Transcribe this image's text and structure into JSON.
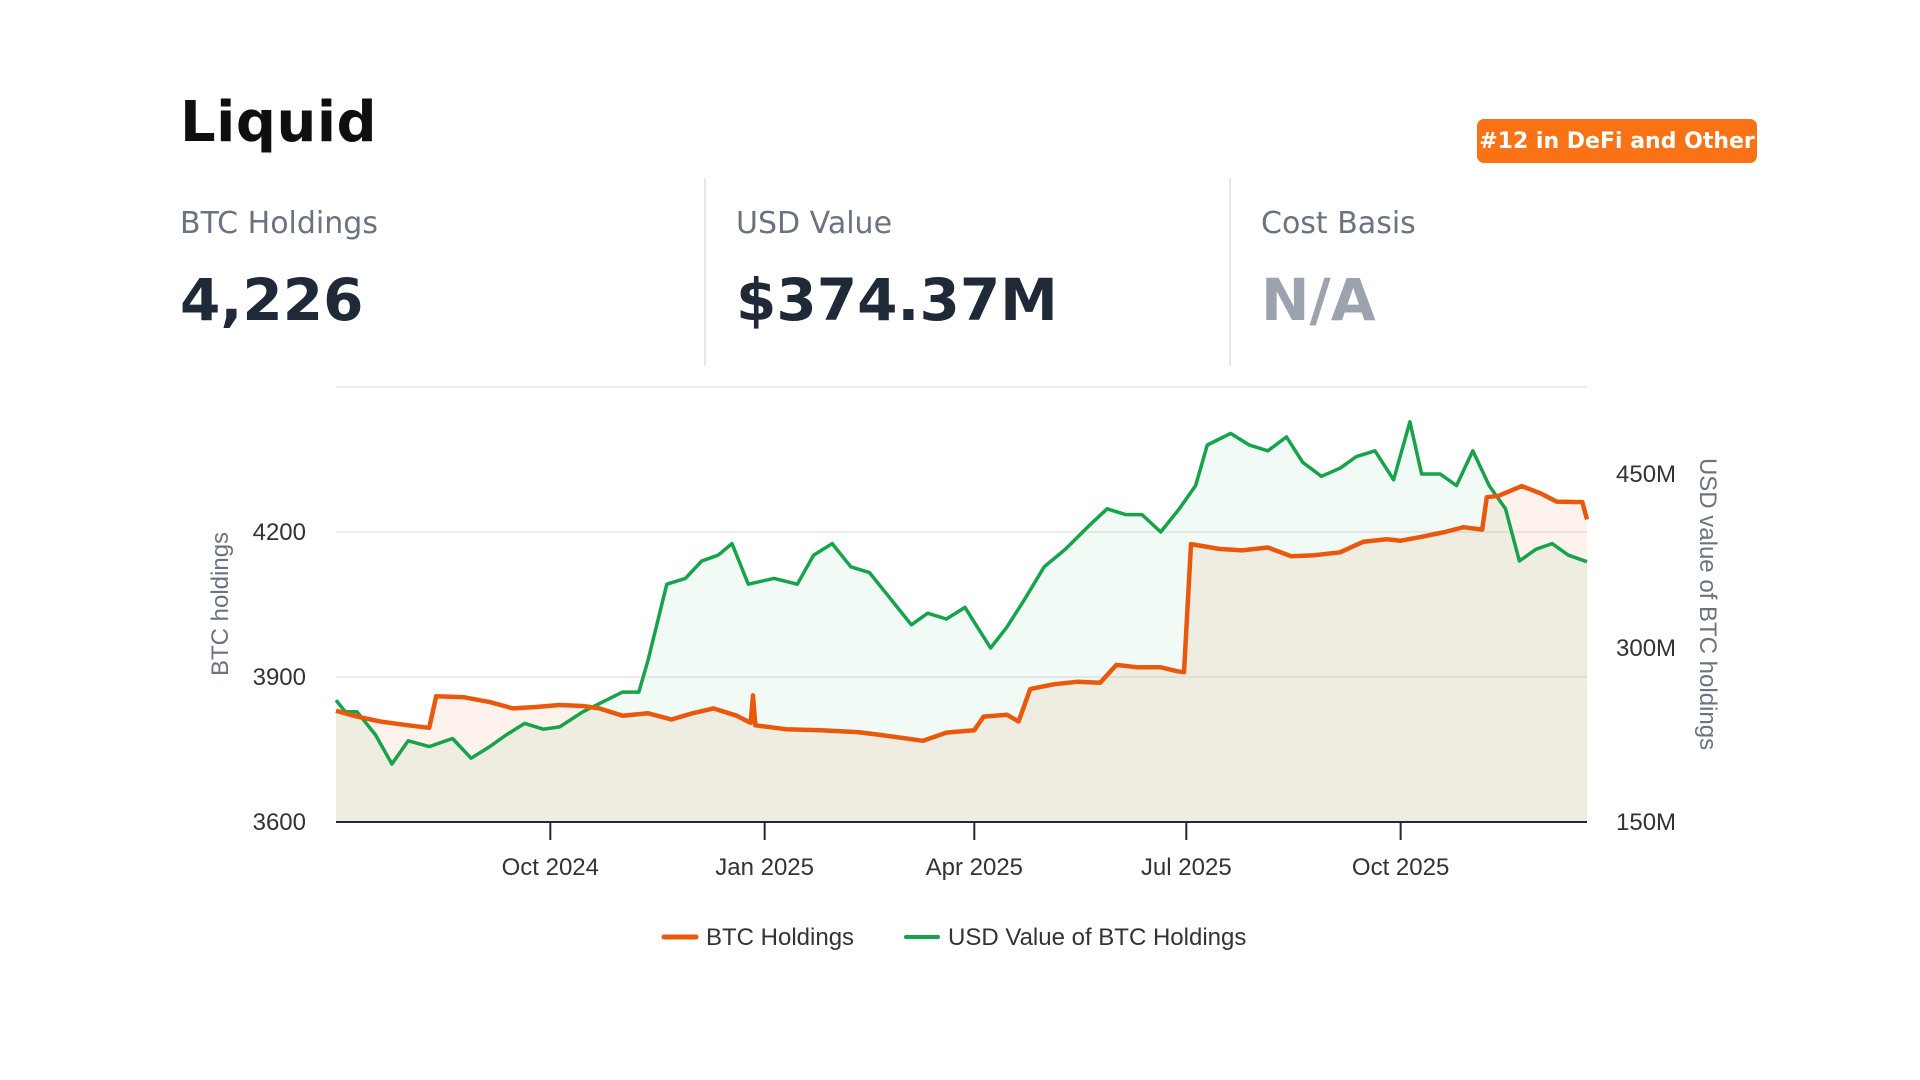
{
  "header": {
    "title": "Liquid",
    "badge": "#12 in DeFi and Other"
  },
  "stats": [
    {
      "label": "BTC Holdings",
      "value": "4,226"
    },
    {
      "label": "USD Value",
      "value": "$374.37M"
    },
    {
      "label": "Cost Basis",
      "value": "N/A"
    }
  ],
  "colors": {
    "btc": "#ea580c",
    "usd": "#16a34a",
    "badge": "#f97316"
  },
  "chart_data": {
    "type": "line",
    "x_range": [
      "2024-07-01",
      "2025-12-20"
    ],
    "x_ticks": [
      "Oct 2024",
      "Jan 2025",
      "Apr 2025",
      "Jul 2025",
      "Oct 2025"
    ],
    "x_tick_dates": [
      "2024-10-01",
      "2025-01-01",
      "2025-04-01",
      "2025-07-01",
      "2025-10-01"
    ],
    "ylabel_left": "BTC holdings",
    "ylabel_right": "USD value of BTC holdings",
    "ylim_left": [
      3600,
      4500
    ],
    "ylim_right": [
      150000000,
      525000000
    ],
    "yticks_left": [
      "3600",
      "3900",
      "4200"
    ],
    "yticks_left_values": [
      3600,
      3900,
      4200
    ],
    "yticks_right": [
      "150M",
      "300M",
      "450M"
    ],
    "yticks_right_values": [
      150000000,
      300000000,
      450000000
    ],
    "grid": true,
    "legend_position": "bottom-center",
    "series": [
      {
        "name": "BTC Holdings",
        "axis": "left",
        "points": [
          [
            "2024-07-01",
            3830
          ],
          [
            "2024-07-10",
            3818
          ],
          [
            "2024-07-20",
            3808
          ],
          [
            "2024-08-01",
            3800
          ],
          [
            "2024-08-10",
            3795
          ],
          [
            "2024-08-13",
            3860
          ],
          [
            "2024-08-25",
            3858
          ],
          [
            "2024-09-05",
            3848
          ],
          [
            "2024-09-15",
            3835
          ],
          [
            "2024-09-25",
            3838
          ],
          [
            "2024-10-05",
            3842
          ],
          [
            "2024-10-15",
            3840
          ],
          [
            "2024-10-22",
            3835
          ],
          [
            "2024-11-01",
            3820
          ],
          [
            "2024-11-12",
            3825
          ],
          [
            "2024-11-22",
            3812
          ],
          [
            "2024-12-01",
            3825
          ],
          [
            "2024-12-10",
            3835
          ],
          [
            "2024-12-20",
            3820
          ],
          [
            "2024-12-26",
            3805
          ],
          [
            "2024-12-27",
            3862
          ],
          [
            "2024-12-28",
            3800
          ],
          [
            "2025-01-10",
            3792
          ],
          [
            "2025-01-25",
            3790
          ],
          [
            "2025-02-10",
            3786
          ],
          [
            "2025-02-20",
            3780
          ],
          [
            "2025-03-01",
            3774
          ],
          [
            "2025-03-10",
            3768
          ],
          [
            "2025-03-20",
            3785
          ],
          [
            "2025-04-01",
            3790
          ],
          [
            "2025-04-05",
            3818
          ],
          [
            "2025-04-15",
            3822
          ],
          [
            "2025-04-20",
            3808
          ],
          [
            "2025-04-25",
            3875
          ],
          [
            "2025-05-05",
            3885
          ],
          [
            "2025-05-15",
            3890
          ],
          [
            "2025-05-25",
            3888
          ],
          [
            "2025-06-01",
            3925
          ],
          [
            "2025-06-10",
            3920
          ],
          [
            "2025-06-20",
            3920
          ],
          [
            "2025-06-27",
            3912
          ],
          [
            "2025-06-30",
            3910
          ],
          [
            "2025-07-03",
            4175
          ],
          [
            "2025-07-15",
            4165
          ],
          [
            "2025-07-25",
            4162
          ],
          [
            "2025-08-05",
            4168
          ],
          [
            "2025-08-15",
            4150
          ],
          [
            "2025-08-25",
            4152
          ],
          [
            "2025-09-05",
            4158
          ],
          [
            "2025-09-15",
            4180
          ],
          [
            "2025-09-25",
            4185
          ],
          [
            "2025-10-01",
            4182
          ],
          [
            "2025-10-10",
            4190
          ],
          [
            "2025-10-20",
            4200
          ],
          [
            "2025-10-28",
            4210
          ],
          [
            "2025-11-05",
            4205
          ],
          [
            "2025-11-07",
            4272
          ],
          [
            "2025-11-12",
            4275
          ],
          [
            "2025-11-22",
            4295
          ],
          [
            "2025-11-30",
            4280
          ],
          [
            "2025-12-07",
            4263
          ],
          [
            "2025-12-15",
            4262
          ],
          [
            "2025-12-18",
            4262
          ],
          [
            "2025-12-20",
            4226
          ]
        ]
      },
      {
        "name": "USD Value of BTC Holdings",
        "axis": "right",
        "points": [
          [
            "2024-07-01",
            255000000
          ],
          [
            "2024-07-05",
            245000000
          ],
          [
            "2024-07-10",
            245000000
          ],
          [
            "2024-07-18",
            225000000
          ],
          [
            "2024-07-25",
            200000000
          ],
          [
            "2024-08-01",
            220000000
          ],
          [
            "2024-08-10",
            215000000
          ],
          [
            "2024-08-20",
            222000000
          ],
          [
            "2024-08-28",
            205000000
          ],
          [
            "2024-09-05",
            215000000
          ],
          [
            "2024-09-12",
            225000000
          ],
          [
            "2024-09-20",
            235000000
          ],
          [
            "2024-09-28",
            230000000
          ],
          [
            "2024-10-05",
            232000000
          ],
          [
            "2024-10-15",
            245000000
          ],
          [
            "2024-10-25",
            255000000
          ],
          [
            "2024-11-01",
            262000000
          ],
          [
            "2024-11-08",
            262000000
          ],
          [
            "2024-11-12",
            290000000
          ],
          [
            "2024-11-20",
            355000000
          ],
          [
            "2024-11-28",
            360000000
          ],
          [
            "2024-12-05",
            375000000
          ],
          [
            "2024-12-12",
            380000000
          ],
          [
            "2024-12-18",
            390000000
          ],
          [
            "2024-12-25",
            355000000
          ],
          [
            "2025-01-05",
            360000000
          ],
          [
            "2025-01-15",
            355000000
          ],
          [
            "2025-01-22",
            380000000
          ],
          [
            "2025-01-30",
            390000000
          ],
          [
            "2025-02-07",
            370000000
          ],
          [
            "2025-02-15",
            365000000
          ],
          [
            "2025-02-25",
            340000000
          ],
          [
            "2025-03-05",
            320000000
          ],
          [
            "2025-03-12",
            330000000
          ],
          [
            "2025-03-20",
            325000000
          ],
          [
            "2025-03-28",
            335000000
          ],
          [
            "2025-04-08",
            300000000
          ],
          [
            "2025-04-15",
            318000000
          ],
          [
            "2025-04-22",
            340000000
          ],
          [
            "2025-05-01",
            370000000
          ],
          [
            "2025-05-10",
            385000000
          ],
          [
            "2025-05-20",
            405000000
          ],
          [
            "2025-05-28",
            420000000
          ],
          [
            "2025-06-05",
            415000000
          ],
          [
            "2025-06-12",
            415000000
          ],
          [
            "2025-06-20",
            400000000
          ],
          [
            "2025-06-28",
            420000000
          ],
          [
            "2025-07-05",
            440000000
          ],
          [
            "2025-07-10",
            475000000
          ],
          [
            "2025-07-20",
            485000000
          ],
          [
            "2025-07-28",
            475000000
          ],
          [
            "2025-08-05",
            470000000
          ],
          [
            "2025-08-13",
            482000000
          ],
          [
            "2025-08-20",
            460000000
          ],
          [
            "2025-08-28",
            448000000
          ],
          [
            "2025-09-05",
            455000000
          ],
          [
            "2025-09-12",
            465000000
          ],
          [
            "2025-09-20",
            470000000
          ],
          [
            "2025-09-28",
            445000000
          ],
          [
            "2025-10-05",
            495000000
          ],
          [
            "2025-10-10",
            450000000
          ],
          [
            "2025-10-18",
            450000000
          ],
          [
            "2025-10-25",
            440000000
          ],
          [
            "2025-11-01",
            470000000
          ],
          [
            "2025-11-08",
            440000000
          ],
          [
            "2025-11-15",
            420000000
          ],
          [
            "2025-11-21",
            375000000
          ],
          [
            "2025-11-28",
            385000000
          ],
          [
            "2025-12-05",
            390000000
          ],
          [
            "2025-12-12",
            380000000
          ],
          [
            "2025-12-20",
            374370000
          ]
        ]
      }
    ]
  }
}
